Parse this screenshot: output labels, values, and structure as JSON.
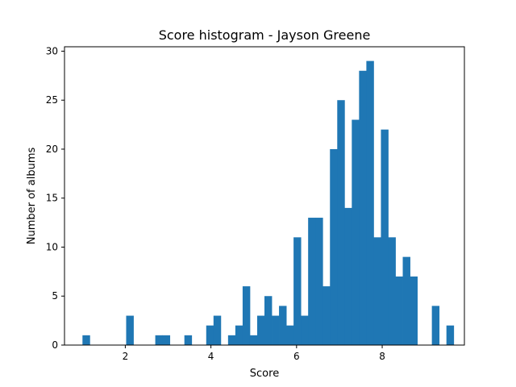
{
  "chart_data": {
    "type": "bar",
    "title": "Score histogram - Jayson Greene",
    "xlabel": "Score",
    "ylabel": "Number of albums",
    "xlim": [
      0.58,
      9.92
    ],
    "ylim": [
      0,
      30.45
    ],
    "xticks": [
      2,
      4,
      6,
      8
    ],
    "yticks": [
      0,
      5,
      10,
      15,
      20,
      25,
      30
    ],
    "bin_start": 1.0,
    "bin_width": 0.17,
    "values": [
      1,
      0,
      0,
      0,
      0,
      0,
      3,
      0,
      0,
      0,
      1,
      1,
      0,
      0,
      1,
      0,
      0,
      2,
      3,
      0,
      1,
      2,
      6,
      1,
      3,
      5,
      3,
      4,
      2,
      11,
      3,
      13,
      13,
      6,
      20,
      25,
      14,
      23,
      28,
      29,
      11,
      22,
      11,
      7,
      9,
      7,
      0,
      0,
      4,
      0,
      2
    ],
    "bar_color": "#1f77b4",
    "grid": false,
    "legend": "none"
  }
}
